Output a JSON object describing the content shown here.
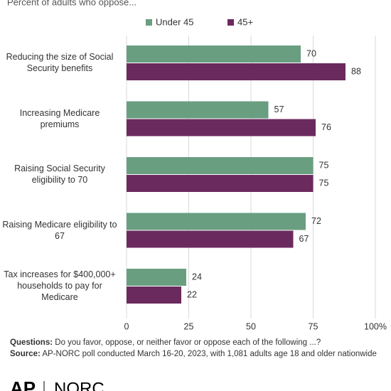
{
  "chart_data": {
    "type": "hbar",
    "subtitle": "Percent of adults who oppose...",
    "categories": [
      "Reducing the size of Social Security benefits",
      "Increasing Medicare premiums",
      "Raising Social Security eligibility to 70",
      "Raising Medicare eligibility to 67",
      "Tax increases for $400,000+ households to pay for Medicare"
    ],
    "series": [
      {
        "name": "Under 45",
        "color": "#6a9e80",
        "values": [
          70,
          57,
          75,
          72,
          24
        ]
      },
      {
        "name": "45+",
        "color": "#6b2a5e",
        "values": [
          88,
          76,
          75,
          67,
          22
        ]
      }
    ],
    "xlim": [
      0,
      100
    ],
    "xticks": [
      0,
      25,
      50,
      75,
      {
        "value": 100,
        "label": "100%"
      }
    ],
    "grid": true,
    "legend": "top"
  },
  "footer": {
    "questions_label": "Questions:",
    "questions": "Do you favor, oppose, or neither favor or oppose each of the following ...?",
    "source_label": "Source:",
    "source": "AP-NORC poll conducted March 16-20, 2023, with 1,081 adults age 18 and older nationwide",
    "logo_ap": "AP",
    "logo_norc": "NORC"
  }
}
